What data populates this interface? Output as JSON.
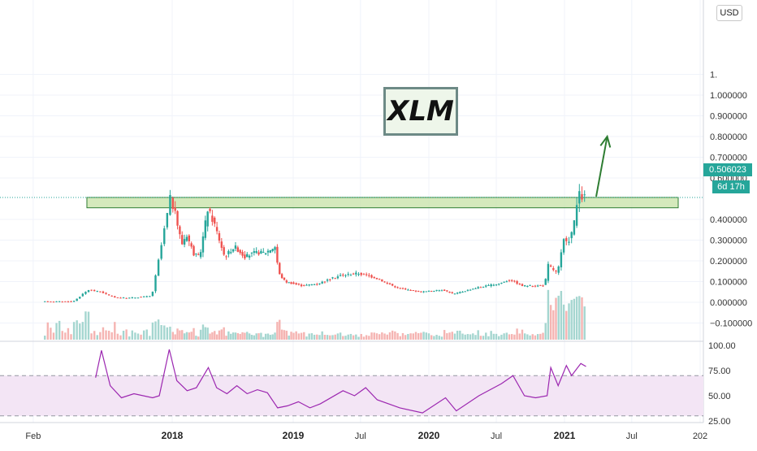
{
  "symbol_label": "XLM",
  "currency": "USD",
  "last_price": "0.506023",
  "bar_countdown": "6d 17h",
  "colors": {
    "up": "#26a69a",
    "down": "#ef5350",
    "rsi_line": "#9c27b0",
    "rsi_band": "#f3e5f5",
    "zone_fill": "#c5e1a5",
    "zone_border": "#2e7d32",
    "arrow": "#2e7d32",
    "grid": "#f0f3fa"
  },
  "chart_data": [
    {
      "type": "candlestick",
      "title": "",
      "y_axis_ticks": [
        "1.",
        "1.000000",
        "0.900000",
        "0.800000",
        "0.700000",
        "0.600000",
        "0.400000",
        "0.300000",
        "0.200000",
        "0.100000",
        "0.000000",
        "−0.100000"
      ],
      "y_axis_tick_values": [
        1.1,
        1.0,
        0.9,
        0.8,
        0.7,
        0.6,
        0.4,
        0.3,
        0.2,
        0.1,
        0.0,
        -0.1
      ],
      "ylim": [
        -0.14,
        1.12
      ],
      "x_axis_ticks": [
        "Feb",
        "2018",
        "2019",
        "Jul",
        "2020",
        "Jul",
        "2021",
        "Jul",
        "202"
      ],
      "x_axis_bold_ticks": [
        "2018",
        "2019",
        "2020",
        "2021"
      ],
      "x_range": [
        "2017-01-01",
        "2022-01-01"
      ],
      "last_price": 0.506023,
      "resistance_zone": {
        "low": 0.46,
        "high": 0.51
      },
      "projection_arrow": {
        "from": {
          "date": "2021-03-01",
          "value": 0.51
        },
        "to": {
          "date": "2021-04-15",
          "value": 0.8
        }
      },
      "series": [
        {
          "values": [
            {
              "date": "2017-03-01",
              "value": 0.003
            },
            {
              "date": "2017-05-15",
              "value": 0.004
            },
            {
              "date": "2017-06-01",
              "value": 0.03
            },
            {
              "date": "2017-06-20",
              "value": 0.06
            },
            {
              "date": "2017-07-20",
              "value": 0.05
            },
            {
              "date": "2017-08-20",
              "value": 0.025
            },
            {
              "date": "2017-09-20",
              "value": 0.02
            },
            {
              "date": "2017-11-20",
              "value": 0.03
            },
            {
              "date": "2018-01-03",
              "value": 0.5
            },
            {
              "date": "2018-01-15",
              "value": 0.44
            },
            {
              "date": "2018-02-06",
              "value": 0.28
            },
            {
              "date": "2018-02-20",
              "value": 0.33
            },
            {
              "date": "2018-03-15",
              "value": 0.23
            },
            {
              "date": "2018-04-01",
              "value": 0.22
            },
            {
              "date": "2018-04-25",
              "value": 0.45
            },
            {
              "date": "2018-05-15",
              "value": 0.38
            },
            {
              "date": "2018-06-15",
              "value": 0.22
            },
            {
              "date": "2018-07-15",
              "value": 0.27
            },
            {
              "date": "2018-08-15",
              "value": 0.22
            },
            {
              "date": "2018-09-15",
              "value": 0.24
            },
            {
              "date": "2018-10-15",
              "value": 0.24
            },
            {
              "date": "2018-11-15",
              "value": 0.27
            },
            {
              "date": "2018-11-25",
              "value": 0.14
            },
            {
              "date": "2018-12-15",
              "value": 0.1
            },
            {
              "date": "2019-02-01",
              "value": 0.08
            },
            {
              "date": "2019-03-15",
              "value": 0.09
            },
            {
              "date": "2019-05-15",
              "value": 0.13
            },
            {
              "date": "2019-07-01",
              "value": 0.14
            },
            {
              "date": "2019-08-15",
              "value": 0.12
            },
            {
              "date": "2019-10-15",
              "value": 0.07
            },
            {
              "date": "2019-12-15",
              "value": 0.05
            },
            {
              "date": "2020-02-15",
              "value": 0.06
            },
            {
              "date": "2020-03-15",
              "value": 0.04
            },
            {
              "date": "2020-05-15",
              "value": 0.07
            },
            {
              "date": "2020-07-15",
              "value": 0.09
            },
            {
              "date": "2020-08-15",
              "value": 0.11
            },
            {
              "date": "2020-09-15",
              "value": 0.08
            },
            {
              "date": "2020-11-15",
              "value": 0.08
            },
            {
              "date": "2020-11-25",
              "value": 0.18
            },
            {
              "date": "2020-12-20",
              "value": 0.14
            },
            {
              "date": "2021-01-06",
              "value": 0.3
            },
            {
              "date": "2021-01-15",
              "value": 0.28
            },
            {
              "date": "2021-02-01",
              "value": 0.36
            },
            {
              "date": "2021-02-14",
              "value": 0.52
            },
            {
              "date": "2021-02-28",
              "value": 0.506023
            }
          ]
        }
      ]
    },
    {
      "type": "bar",
      "title": "",
      "note": "volume histogram, relative heights",
      "ylim": [
        0,
        1
      ]
    },
    {
      "type": "line",
      "title": "",
      "y_axis_ticks": [
        "100.00",
        "75.00",
        "50.00",
        "25.00"
      ],
      "y_axis_tick_values": [
        100,
        75,
        50,
        25
      ],
      "ylim": [
        24,
        104
      ],
      "bands": [
        70,
        30
      ],
      "series": [
        {
          "values": [
            {
              "date": "2017-07-01",
              "value": 68
            },
            {
              "date": "2017-07-15",
              "value": 95
            },
            {
              "date": "2017-08-05",
              "value": 60
            },
            {
              "date": "2017-09-01",
              "value": 48
            },
            {
              "date": "2017-10-01",
              "value": 52
            },
            {
              "date": "2017-11-15",
              "value": 48
            },
            {
              "date": "2017-12-01",
              "value": 50
            },
            {
              "date": "2017-12-25",
              "value": 96
            },
            {
              "date": "2018-01-15",
              "value": 65
            },
            {
              "date": "2018-02-15",
              "value": 55
            },
            {
              "date": "2018-03-15",
              "value": 58
            },
            {
              "date": "2018-04-20",
              "value": 78
            },
            {
              "date": "2018-05-15",
              "value": 58
            },
            {
              "date": "2018-06-15",
              "value": 52
            },
            {
              "date": "2018-07-15",
              "value": 60
            },
            {
              "date": "2018-08-15",
              "value": 52
            },
            {
              "date": "2018-09-15",
              "value": 56
            },
            {
              "date": "2018-10-15",
              "value": 53
            },
            {
              "date": "2018-11-15",
              "value": 38
            },
            {
              "date": "2018-12-15",
              "value": 40
            },
            {
              "date": "2019-01-15",
              "value": 44
            },
            {
              "date": "2019-02-15",
              "value": 38
            },
            {
              "date": "2019-03-15",
              "value": 42
            },
            {
              "date": "2019-05-15",
              "value": 55
            },
            {
              "date": "2019-06-15",
              "value": 50
            },
            {
              "date": "2019-07-15",
              "value": 58
            },
            {
              "date": "2019-08-15",
              "value": 46
            },
            {
              "date": "2019-10-15",
              "value": 38
            },
            {
              "date": "2019-12-15",
              "value": 33
            },
            {
              "date": "2020-02-15",
              "value": 48
            },
            {
              "date": "2020-03-15",
              "value": 35
            },
            {
              "date": "2020-05-15",
              "value": 50
            },
            {
              "date": "2020-07-15",
              "value": 62
            },
            {
              "date": "2020-08-15",
              "value": 70
            },
            {
              "date": "2020-09-15",
              "value": 50
            },
            {
              "date": "2020-10-15",
              "value": 48
            },
            {
              "date": "2020-11-15",
              "value": 50
            },
            {
              "date": "2020-11-25",
              "value": 78
            },
            {
              "date": "2020-12-15",
              "value": 60
            },
            {
              "date": "2021-01-06",
              "value": 80
            },
            {
              "date": "2021-01-20",
              "value": 70
            },
            {
              "date": "2021-02-14",
              "value": 82
            },
            {
              "date": "2021-02-28",
              "value": 79
            }
          ]
        }
      ]
    }
  ]
}
